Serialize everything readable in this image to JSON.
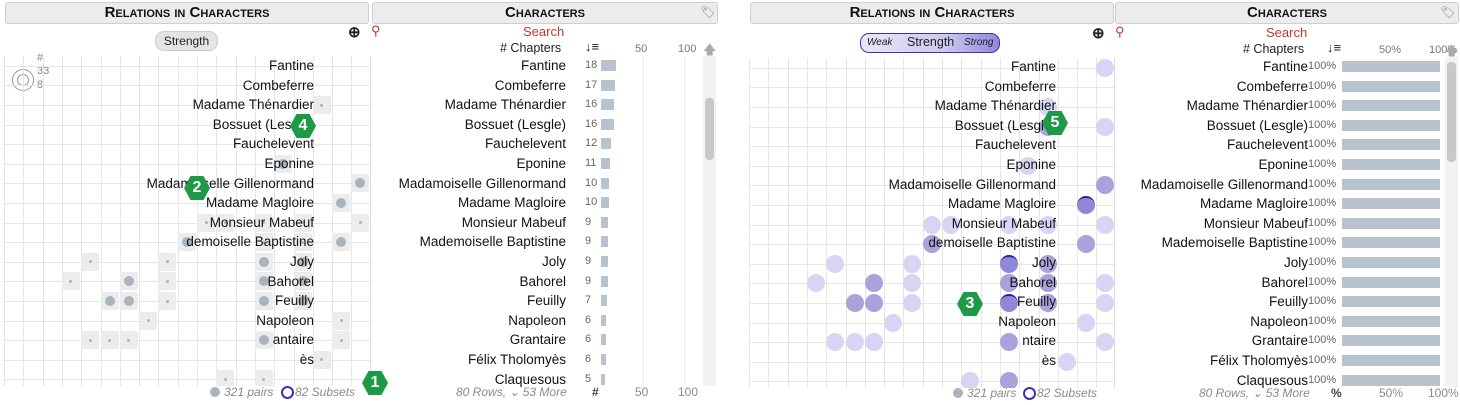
{
  "left": {
    "relations_title": "Relations in Characters",
    "characters_title": "Characters",
    "strength_label": "Strength",
    "search_label": "Search",
    "chapters_header": "# Chapters",
    "legend_hash": "#",
    "legend_33": "33",
    "legend_8": "8",
    "axis_50": "50",
    "axis_100": "100",
    "foot_pairs": "321 pairs",
    "foot_subsets": "82 Subsets",
    "foot_rows": "80 Rows, ⌄ 53 More",
    "foot_hash": "#",
    "foot_50": "50",
    "foot_100": "100",
    "badge_1": "1",
    "badge_2": "2",
    "badge_4": "4"
  },
  "right": {
    "relations_title": "Relations in Characters",
    "characters_title": "Characters",
    "strength_weak": "Weak",
    "strength_label": "Strength",
    "strength_strong": "Strong",
    "search_label": "Search",
    "chapters_header": "# Chapters",
    "axis_50": "50%",
    "axis_100": "100%",
    "foot_pairs": "321 pairs",
    "foot_subsets": "82 Subsets",
    "foot_rows": "80 Rows, ⌄ 53 More",
    "foot_pct": "%",
    "foot_50": "50%",
    "foot_100": "100%",
    "badge_3": "3",
    "badge_5": "5",
    "pct_value": "100%"
  },
  "characters": [
    {
      "name": "Fantine",
      "chapters": 18
    },
    {
      "name": "Combeferre",
      "chapters": 17
    },
    {
      "name": "Madame Thénardier",
      "chapters": 16
    },
    {
      "name": "Bossuet (Lesgle)",
      "chapters": 16
    },
    {
      "name": "Fauchelevent",
      "chapters": 12
    },
    {
      "name": "Eponine",
      "chapters": 11
    },
    {
      "name": "Madamoiselle Gillenormand",
      "chapters": 10
    },
    {
      "name": "Madame Magloire",
      "chapters": 10
    },
    {
      "name": "Monsieur Mabeuf",
      "chapters": 9
    },
    {
      "name": "Mademoiselle Baptistine",
      "chapters": 9
    },
    {
      "name": "Joly",
      "chapters": 9
    },
    {
      "name": "Bahorel",
      "chapters": 9
    },
    {
      "name": "Feuilly",
      "chapters": 7
    },
    {
      "name": "Napoleon",
      "chapters": 6
    },
    {
      "name": "Grantaire",
      "chapters": 6
    },
    {
      "name": "Félix Tholomyès",
      "chapters": 6
    },
    {
      "name": "Claquesous",
      "chapters": 5
    }
  ],
  "left_matrix_labels": [
    "Fantine",
    "Combeferre",
    "Madame Thénardier",
    "Bossuet (Lesgle)",
    "Fauchelevent",
    "Eponine",
    "Madamoiselle Gillenormand",
    "Madame Magloire",
    "Monsieur Mabeuf",
    "demoiselle Baptistine",
    "Joly",
    "Bahorel",
    "Feuilly",
    "Napoleon",
    "antaire",
    "ès"
  ],
  "right_matrix_labels": [
    "Fantine",
    "Combeferre",
    "Madame Thénardier",
    "Bossuet (Lesgle)",
    "Fauchelevent",
    "Eponine",
    "Madamoiselle Gillenormand",
    "Madame Magloire",
    "Monsieur Mabeuf",
    "demoiselle Baptistine",
    "Joly",
    "Bahorel",
    "Feuilly",
    "Napoleon",
    "ntaire",
    "ès"
  ],
  "colors": {
    "badge": "#1e9a46",
    "search": "#c4362f",
    "bar": "#b9c3cd",
    "dot_gray": "#a9b4bc",
    "dot_purple": "#a9a3dc"
  }
}
